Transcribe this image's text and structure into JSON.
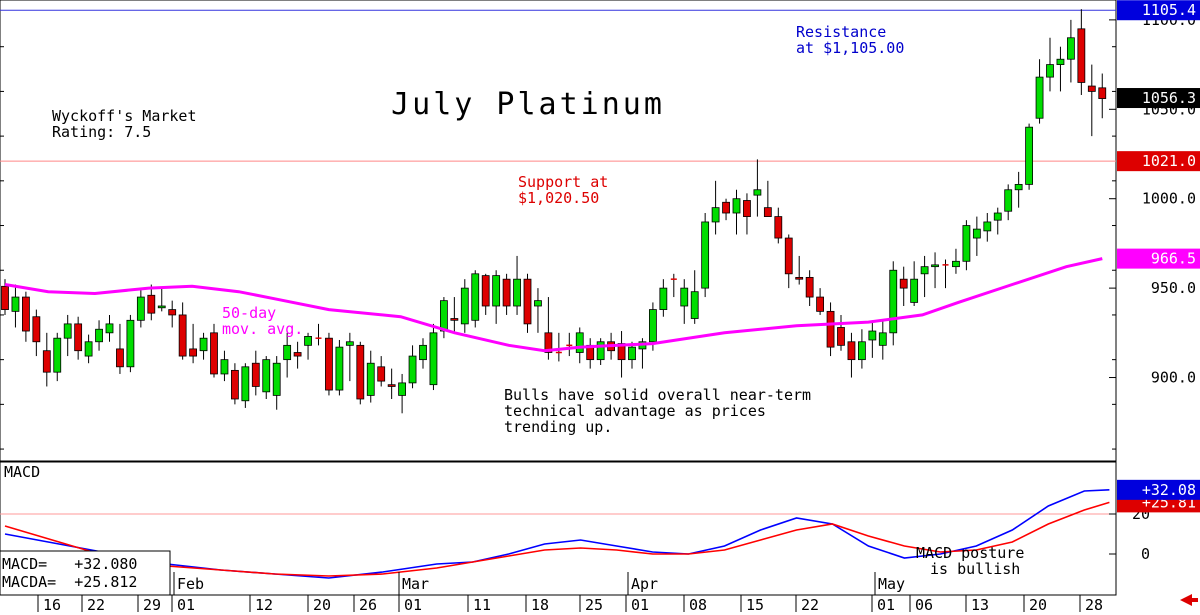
{
  "chart_data": [
    {
      "type": "candlestick",
      "title": "July Platinum",
      "rating": "Wyckoff's Market\nRating: 7.5",
      "ylim": [
        855,
        1110
      ],
      "ytick_labels": [
        "900.0",
        "950.0",
        "1000.0",
        "1050.0",
        "1100.0"
      ],
      "ytick_values": [
        900,
        950,
        1000,
        1050,
        1100
      ],
      "resistance": {
        "value": 1105.4,
        "label": "1105.4",
        "note": "Resistance\nat $1,105.00",
        "color": "#0000cc"
      },
      "support": {
        "value": 1021.0,
        "label": "1021.0",
        "note": "Support at\n$1,020.50",
        "color": "#dd0000"
      },
      "last_price": {
        "value": 1056.3,
        "label": "1056.3"
      },
      "ma": {
        "label": "966.5",
        "value": 966.5,
        "note": "50-day\nmov. avg.",
        "color": "#ff00ff"
      },
      "annotation": "Bulls have solid overall near-term\ntechnical advantage as prices\ntrending up.",
      "ohlc": [
        [
          951,
          955,
          935,
          938
        ],
        [
          937,
          952,
          928,
          945
        ],
        [
          945,
          948,
          920,
          926
        ],
        [
          934,
          938,
          912,
          920
        ],
        [
          915,
          925,
          895,
          903
        ],
        [
          903,
          925,
          898,
          922
        ],
        [
          922,
          935,
          912,
          930
        ],
        [
          930,
          934,
          910,
          915
        ],
        [
          912,
          924,
          908,
          920
        ],
        [
          920,
          932,
          915,
          927
        ],
        [
          925,
          935,
          920,
          930
        ],
        [
          916,
          930,
          902,
          906
        ],
        [
          906,
          935,
          903,
          932
        ],
        [
          932,
          950,
          928,
          945
        ],
        [
          946,
          952,
          932,
          936
        ],
        [
          939,
          950,
          937,
          940
        ],
        [
          938,
          943,
          928,
          935
        ],
        [
          935,
          942,
          910,
          912
        ],
        [
          916,
          930,
          908,
          912
        ],
        [
          915,
          925,
          910,
          922
        ],
        [
          925,
          930,
          900,
          902
        ],
        [
          902,
          915,
          898,
          910
        ],
        [
          904,
          908,
          885,
          888
        ],
        [
          887,
          908,
          883,
          906
        ],
        [
          908,
          915,
          890,
          895
        ],
        [
          892,
          912,
          888,
          910
        ],
        [
          890,
          912,
          882,
          908
        ],
        [
          910,
          925,
          900,
          918
        ],
        [
          914,
          920,
          905,
          912
        ],
        [
          918,
          925,
          910,
          923
        ],
        [
          922,
          930,
          918,
          922
        ],
        [
          922,
          925,
          890,
          893
        ],
        [
          893,
          921,
          890,
          917
        ],
        [
          918,
          925,
          898,
          920
        ],
        [
          918,
          920,
          885,
          888
        ],
        [
          890,
          915,
          886,
          908
        ],
        [
          906,
          912,
          895,
          898
        ],
        [
          896,
          905,
          888,
          895
        ],
        [
          890,
          902,
          880,
          897
        ],
        [
          897,
          918,
          894,
          912
        ],
        [
          910,
          922,
          905,
          918
        ],
        [
          896,
          930,
          893,
          925
        ],
        [
          926,
          945,
          922,
          943
        ],
        [
          933,
          945,
          925,
          932
        ],
        [
          930,
          955,
          925,
          950
        ],
        [
          932,
          960,
          928,
          958
        ],
        [
          957,
          958,
          935,
          940
        ],
        [
          940,
          960,
          930,
          957
        ],
        [
          955,
          958,
          935,
          940
        ],
        [
          940,
          968,
          935,
          955
        ],
        [
          955,
          958,
          925,
          930
        ],
        [
          940,
          950,
          925,
          943
        ],
        [
          925,
          945,
          910,
          914
        ],
        [
          914,
          925,
          909,
          914
        ],
        [
          918,
          925,
          912,
          918
        ],
        [
          914,
          928,
          908,
          925
        ],
        [
          918,
          922,
          905,
          910
        ],
        [
          910,
          922,
          907,
          920
        ],
        [
          920,
          925,
          910,
          915
        ],
        [
          919,
          926,
          900,
          910
        ],
        [
          910,
          920,
          905,
          917
        ],
        [
          916,
          922,
          905,
          920
        ],
        [
          920,
          942,
          915,
          938
        ],
        [
          938,
          955,
          934,
          950
        ],
        [
          955,
          958,
          945,
          955
        ],
        [
          940,
          955,
          930,
          950
        ],
        [
          933,
          960,
          930,
          948
        ],
        [
          950,
          992,
          945,
          987
        ],
        [
          987,
          1010,
          980,
          995
        ],
        [
          998,
          1000,
          988,
          992
        ],
        [
          992,
          1005,
          980,
          1000
        ],
        [
          999,
          1003,
          980,
          990
        ],
        [
          1002,
          1022,
          990,
          1005
        ],
        [
          995,
          1010,
          990,
          990
        ],
        [
          990,
          995,
          975,
          978
        ],
        [
          978,
          980,
          950,
          958
        ],
        [
          956,
          968,
          952,
          955
        ],
        [
          956,
          960,
          940,
          945
        ],
        [
          945,
          950,
          935,
          937
        ],
        [
          937,
          942,
          912,
          917
        ],
        [
          928,
          935,
          915,
          918
        ],
        [
          920,
          925,
          900,
          910
        ],
        [
          910,
          927,
          905,
          920
        ],
        [
          921,
          932,
          911,
          926
        ],
        [
          918,
          932,
          910,
          925
        ],
        [
          925,
          965,
          918,
          960
        ],
        [
          955,
          962,
          940,
          950
        ],
        [
          942,
          965,
          940,
          955
        ],
        [
          958,
          968,
          945,
          962
        ],
        [
          962,
          970,
          950,
          963
        ],
        [
          963,
          966,
          950,
          963
        ],
        [
          962,
          972,
          958,
          965
        ],
        [
          965,
          988,
          960,
          985
        ],
        [
          978,
          990,
          968,
          983
        ],
        [
          982,
          992,
          976,
          987
        ],
        [
          988,
          995,
          980,
          992
        ],
        [
          993,
          1008,
          988,
          1005
        ],
        [
          1005,
          1015,
          995,
          1008
        ],
        [
          1008,
          1042,
          1005,
          1040
        ],
        [
          1045,
          1078,
          1042,
          1068
        ],
        [
          1068,
          1090,
          1060,
          1075
        ],
        [
          1075,
          1085,
          1060,
          1078
        ],
        [
          1078,
          1100,
          1065,
          1090
        ],
        [
          1095,
          1106,
          1058,
          1065
        ],
        [
          1063,
          1075,
          1035,
          1060
        ],
        [
          1062,
          1070,
          1045,
          1056
        ]
      ],
      "ma_series": [
        [
          0,
          952
        ],
        [
          12,
          948
        ],
        [
          25,
          947
        ],
        [
          40,
          950
        ],
        [
          52,
          951
        ],
        [
          65,
          948
        ],
        [
          75,
          944
        ],
        [
          90,
          938
        ],
        [
          110,
          934
        ],
        [
          125,
          925
        ],
        [
          140,
          918
        ],
        [
          150,
          915
        ],
        [
          160,
          917
        ],
        [
          180,
          919
        ],
        [
          200,
          925
        ],
        [
          220,
          929
        ],
        [
          240,
          931
        ],
        [
          255,
          935
        ],
        [
          265,
          942
        ],
        [
          280,
          952
        ],
        [
          295,
          962
        ],
        [
          305,
          966.5
        ]
      ],
      "x_tick_labels": [
        "16",
        "22",
        "29",
        "01",
        "12",
        "20",
        "26",
        "01",
        "11",
        "18",
        "25",
        "01",
        "08",
        "15",
        "22",
        "01",
        "06",
        "13",
        "20",
        "28"
      ],
      "month_labels": [
        "Feb",
        "Mar",
        "Apr",
        "May"
      ]
    },
    {
      "type": "line",
      "title": "MACD",
      "ylim": [
        -20,
        45
      ],
      "ytick_labels": [
        "0",
        "20"
      ],
      "ytick_values": [
        0,
        20
      ],
      "macd_label": "+32.08",
      "macda_label": "+25.81",
      "readout": {
        "macd": "MACD=   +32.080",
        "macda": "MACDA=  +25.812"
      },
      "note": "MACD posture\nis bullish",
      "series": [
        {
          "color": "#0000ff",
          "values": [
            [
              0,
              10
            ],
            [
              15,
              5
            ],
            [
              30,
              0
            ],
            [
              45,
              -5
            ],
            [
              60,
              -8
            ],
            [
              75,
              -10
            ],
            [
              90,
              -12
            ],
            [
              105,
              -9
            ],
            [
              120,
              -5
            ],
            [
              130,
              -4
            ],
            [
              140,
              0
            ],
            [
              150,
              5
            ],
            [
              160,
              7
            ],
            [
              170,
              4
            ],
            [
              180,
              1
            ],
            [
              190,
              0
            ],
            [
              200,
              4
            ],
            [
              210,
              12
            ],
            [
              220,
              18
            ],
            [
              230,
              15
            ],
            [
              240,
              4
            ],
            [
              250,
              -2
            ],
            [
              260,
              0
            ],
            [
              270,
              4
            ],
            [
              280,
              12
            ],
            [
              290,
              24
            ],
            [
              300,
              31.5
            ],
            [
              307,
              32.08
            ]
          ]
        },
        {
          "color": "#ff0000",
          "values": [
            [
              0,
              14
            ],
            [
              15,
              6
            ],
            [
              30,
              -2
            ],
            [
              45,
              -6
            ],
            [
              60,
              -8
            ],
            [
              75,
              -10
            ],
            [
              90,
              -11
            ],
            [
              105,
              -10
            ],
            [
              120,
              -7
            ],
            [
              130,
              -4
            ],
            [
              140,
              -1
            ],
            [
              150,
              2
            ],
            [
              160,
              3
            ],
            [
              170,
              2
            ],
            [
              180,
              0
            ],
            [
              190,
              0
            ],
            [
              200,
              2
            ],
            [
              210,
              7
            ],
            [
              220,
              12
            ],
            [
              230,
              15
            ],
            [
              240,
              9
            ],
            [
              250,
              4
            ],
            [
              260,
              1
            ],
            [
              270,
              2
            ],
            [
              280,
              6
            ],
            [
              290,
              15
            ],
            [
              300,
              22
            ],
            [
              307,
              25.81
            ]
          ]
        }
      ]
    }
  ]
}
